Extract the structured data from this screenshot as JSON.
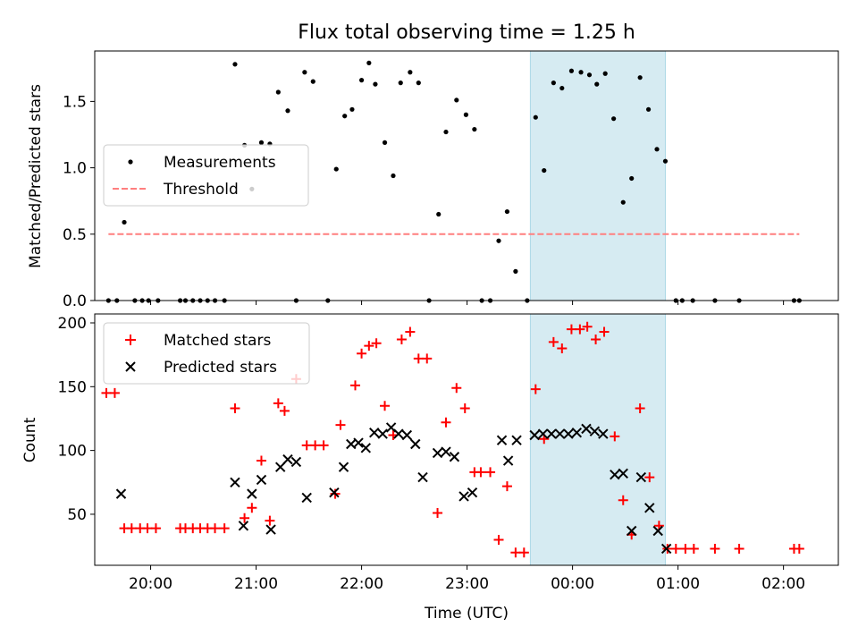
{
  "figure": {
    "title": "Flux total observing time = 1.25 h",
    "xlabel": "Time (UTC)"
  },
  "colors": {
    "highlight": "#add8e6",
    "measurement": "#000000",
    "threshold": "#ff7f7f",
    "matched": "#ff0000",
    "predicted": "#000000"
  },
  "chart_data": [
    {
      "type": "scatter",
      "panel": "top",
      "ylabel": "Matched/Predicted stars",
      "xlim": [
        19.47,
        26.52
      ],
      "ylim": [
        0,
        1.88
      ],
      "yticks": [
        0.0,
        0.5,
        1.0,
        1.5
      ],
      "ytick_labels": [
        "0.0",
        "0.5",
        "1.0",
        "1.5"
      ],
      "highlight_span": [
        23.6,
        24.88
      ],
      "legend": {
        "placement": "center-left",
        "entries": [
          "Measurements",
          "Threshold"
        ]
      },
      "series": [
        {
          "name": "Measurements",
          "marker": "dot",
          "x": [
            19.6,
            19.68,
            19.75,
            19.85,
            19.92,
            19.98,
            20.07,
            20.28,
            20.33,
            20.4,
            20.47,
            20.54,
            20.61,
            20.7,
            20.8,
            20.89,
            20.96,
            21.05,
            21.13,
            21.21,
            21.3,
            21.38,
            21.46,
            21.54,
            21.68,
            21.76,
            21.84,
            21.91,
            22.0,
            22.07,
            22.13,
            22.22,
            22.3,
            22.37,
            22.46,
            22.54,
            22.64,
            22.73,
            22.8,
            22.9,
            22.99,
            23.07,
            23.14,
            23.22,
            23.3,
            23.38,
            23.46,
            23.57,
            23.65,
            23.73,
            23.82,
            23.9,
            23.99,
            24.08,
            24.16,
            24.23,
            24.31,
            24.39,
            24.48,
            24.56,
            24.64,
            24.72,
            24.8,
            24.88,
            24.98,
            25.04,
            25.14,
            25.35,
            25.58,
            26.1,
            26.15
          ],
          "y": [
            0,
            0,
            0.59,
            0,
            0,
            0,
            0,
            0,
            0,
            0,
            0,
            0,
            0,
            0,
            1.78,
            1.17,
            0.84,
            1.19,
            1.18,
            1.57,
            1.43,
            0,
            1.72,
            1.65,
            0,
            0.99,
            1.39,
            1.44,
            1.66,
            1.79,
            1.63,
            1.19,
            0.94,
            1.64,
            1.72,
            1.64,
            0,
            0.65,
            1.27,
            1.51,
            1.4,
            1.29,
            0,
            0,
            0.45,
            0.67,
            0.22,
            0,
            1.38,
            0.98,
            1.64,
            1.6,
            1.73,
            1.72,
            1.7,
            1.63,
            1.71,
            1.37,
            0.74,
            0.92,
            1.68,
            1.44,
            1.14,
            1.05,
            0,
            0,
            0,
            0,
            0,
            0,
            0
          ]
        },
        {
          "name": "Threshold",
          "style": "dashed",
          "x": [
            19.6,
            26.15
          ],
          "y": [
            0.5,
            0.5
          ]
        }
      ]
    },
    {
      "type": "scatter",
      "panel": "bottom",
      "ylabel": "Count",
      "xlim": [
        19.47,
        26.52
      ],
      "ylim": [
        10,
        207
      ],
      "yticks": [
        50,
        100,
        150,
        200
      ],
      "ytick_labels": [
        "50",
        "100",
        "150",
        "200"
      ],
      "xticks": [
        20,
        21,
        22,
        23,
        24,
        25,
        26
      ],
      "xtick_labels": [
        "20:00",
        "21:00",
        "22:00",
        "23:00",
        "00:00",
        "01:00",
        "02:00"
      ],
      "highlight_span": [
        23.6,
        24.88
      ],
      "legend": {
        "placement": "upper-left",
        "entries": [
          "Matched stars",
          "Predicted stars"
        ]
      },
      "series": [
        {
          "name": "Matched stars",
          "marker": "plus",
          "x": [
            19.58,
            19.66,
            19.75,
            19.82,
            19.9,
            19.97,
            20.05,
            20.28,
            20.33,
            20.4,
            20.47,
            20.54,
            20.61,
            20.7,
            20.8,
            20.89,
            20.96,
            21.05,
            21.13,
            21.21,
            21.27,
            21.38,
            21.48,
            21.56,
            21.64,
            21.75,
            21.8,
            21.94,
            22.0,
            22.07,
            22.14,
            22.22,
            22.3,
            22.38,
            22.46,
            22.54,
            22.62,
            22.72,
            22.8,
            22.9,
            22.98,
            23.07,
            23.13,
            23.22,
            23.3,
            23.38,
            23.46,
            23.54,
            23.65,
            23.73,
            23.82,
            23.9,
            23.99,
            24.07,
            24.14,
            24.22,
            24.3,
            24.4,
            24.48,
            24.56,
            24.64,
            24.73,
            24.82,
            24.9,
            24.98,
            25.07,
            25.15,
            25.35,
            25.58,
            26.1,
            26.15
          ],
          "y": [
            145,
            145,
            39,
            39,
            39,
            39,
            39,
            39,
            39,
            39,
            39,
            39,
            39,
            39,
            133,
            47,
            55,
            92,
            45,
            137,
            131,
            156,
            104,
            104,
            104,
            66,
            120,
            151,
            176,
            182,
            184,
            135,
            112,
            187,
            193,
            172,
            172,
            51,
            122,
            149,
            133,
            83,
            83,
            83,
            30,
            72,
            20,
            20,
            148,
            109,
            185,
            180,
            195,
            195,
            197,
            187,
            193,
            111,
            61,
            34,
            133,
            79,
            41,
            23,
            23,
            23,
            23,
            23,
            23,
            23,
            23
          ]
        },
        {
          "name": "Predicted stars",
          "marker": "x",
          "x": [
            19.72,
            20.8,
            20.88,
            20.96,
            21.05,
            21.14,
            21.23,
            21.3,
            21.38,
            21.48,
            21.74,
            21.83,
            21.9,
            21.97,
            22.04,
            22.12,
            22.2,
            22.28,
            22.35,
            22.43,
            22.51,
            22.58,
            22.72,
            22.8,
            22.88,
            22.97,
            23.05,
            23.33,
            23.39,
            23.47,
            23.64,
            23.72,
            23.8,
            23.88,
            23.96,
            24.04,
            24.13,
            24.21,
            24.29,
            24.4,
            24.48,
            24.56,
            24.65,
            24.73,
            24.81,
            24.89
          ],
          "y": [
            66,
            75,
            41,
            66,
            77,
            38,
            87,
            93,
            91,
            63,
            67,
            87,
            105,
            106,
            102,
            114,
            113,
            118,
            113,
            112,
            105,
            79,
            98,
            99,
            95,
            64,
            67,
            108,
            92,
            108,
            112,
            113,
            113,
            113,
            113,
            114,
            117,
            115,
            113,
            81,
            82,
            37,
            79,
            55,
            37,
            23
          ]
        }
      ]
    }
  ]
}
